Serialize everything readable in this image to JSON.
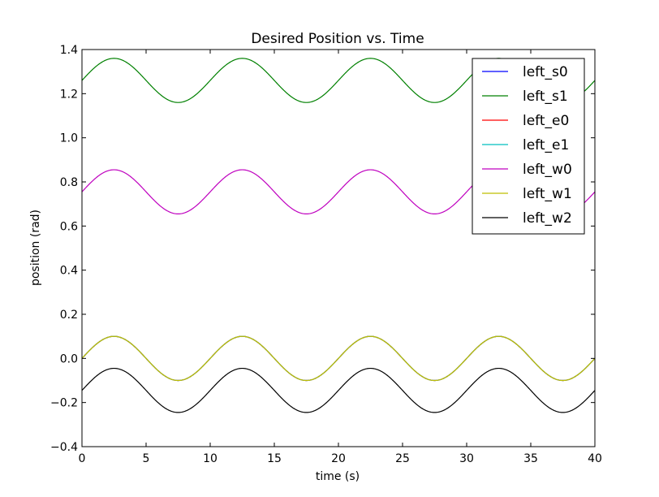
{
  "chart_data": {
    "type": "line",
    "title": "Desired Position vs. Time",
    "xlabel": "time (s)",
    "ylabel": "position (rad)",
    "xlim": [
      0,
      40
    ],
    "ylim": [
      -0.4,
      1.4
    ],
    "x_ticks": [
      "0",
      "5",
      "10",
      "15",
      "20",
      "25",
      "30",
      "35",
      "40"
    ],
    "y_ticks": [
      "−0.4",
      "−0.2",
      "0.0",
      "0.2",
      "0.4",
      "0.6",
      "0.8",
      "1.0",
      "1.2",
      "1.4"
    ],
    "grid": false,
    "legend_position": "top-right",
    "period_s": 10,
    "series": [
      {
        "name": "left_s0",
        "color": "#0000ff",
        "offset": 0.0,
        "amplitude": 0.1
      },
      {
        "name": "left_s1",
        "color": "#008000",
        "offset": 1.26,
        "amplitude": 0.1
      },
      {
        "name": "left_e0",
        "color": "#ff0000",
        "offset": 0.0,
        "amplitude": 0.1
      },
      {
        "name": "left_e1",
        "color": "#00bfbf",
        "offset": 0.0,
        "amplitude": 0.1
      },
      {
        "name": "left_w0",
        "color": "#bf00bf",
        "offset": 0.755,
        "amplitude": 0.1
      },
      {
        "name": "left_w1",
        "color": "#bfbf00",
        "offset": 0.0,
        "amplitude": 0.1
      },
      {
        "name": "left_w2",
        "color": "#000000",
        "offset": -0.145,
        "amplitude": 0.1
      }
    ]
  }
}
